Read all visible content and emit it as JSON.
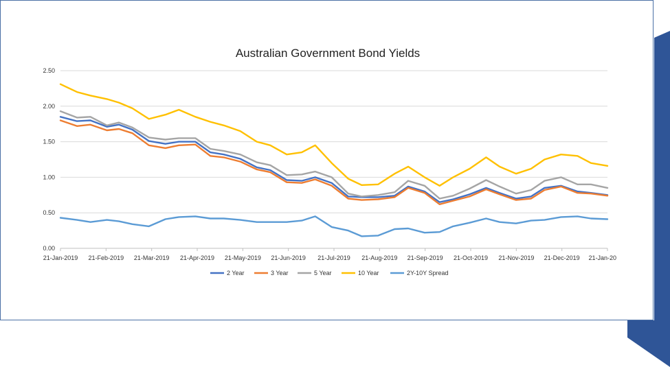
{
  "chart_data": {
    "type": "line",
    "title": "Australian Government Bond Yields",
    "xlabel": "",
    "ylabel": "",
    "ylim": [
      0,
      2.5
    ],
    "yticks": [
      "0.00",
      "0.50",
      "1.00",
      "1.50",
      "2.00",
      "2.50"
    ],
    "xticks": [
      "21-Jan-2019",
      "21-Feb-2019",
      "21-Mar-2019",
      "21-Apr-2019",
      "21-May-2019",
      "21-Jun-2019",
      "21-Jul-2019",
      "21-Aug-2019",
      "21-Sep-2019",
      "21-Oct-2019",
      "21-Nov-2019",
      "21-Dec-2019",
      "21-Jan-20"
    ],
    "grid": true,
    "legend_position": "bottom",
    "x": [
      "2019-01-21",
      "2019-02-01",
      "2019-02-10",
      "2019-02-21",
      "2019-03-01",
      "2019-03-10",
      "2019-03-21",
      "2019-04-01",
      "2019-04-10",
      "2019-04-21",
      "2019-05-01",
      "2019-05-10",
      "2019-05-21",
      "2019-06-01",
      "2019-06-10",
      "2019-06-21",
      "2019-07-01",
      "2019-07-10",
      "2019-07-21",
      "2019-08-01",
      "2019-08-10",
      "2019-08-21",
      "2019-09-01",
      "2019-09-10",
      "2019-09-21",
      "2019-10-01",
      "2019-10-10",
      "2019-10-21",
      "2019-11-01",
      "2019-11-10",
      "2019-11-21",
      "2019-12-01",
      "2019-12-10",
      "2019-12-21",
      "2020-01-01",
      "2020-01-10",
      "2020-01-21"
    ],
    "series": [
      {
        "name": "2 Year",
        "color": "#4472c4",
        "values": [
          1.85,
          1.79,
          1.8,
          1.71,
          1.74,
          1.67,
          1.51,
          1.47,
          1.5,
          1.5,
          1.35,
          1.32,
          1.26,
          1.14,
          1.1,
          0.96,
          0.95,
          1.0,
          0.92,
          0.73,
          0.72,
          0.72,
          0.74,
          0.87,
          0.8,
          0.65,
          0.69,
          0.76,
          0.85,
          0.78,
          0.7,
          0.73,
          0.85,
          0.88,
          0.8,
          0.78,
          0.75
        ]
      },
      {
        "name": "3 Year",
        "color": "#ed7d31",
        "values": [
          1.8,
          1.72,
          1.74,
          1.66,
          1.68,
          1.62,
          1.45,
          1.41,
          1.45,
          1.46,
          1.3,
          1.28,
          1.22,
          1.11,
          1.07,
          0.93,
          0.92,
          0.97,
          0.88,
          0.7,
          0.68,
          0.69,
          0.72,
          0.85,
          0.78,
          0.62,
          0.67,
          0.73,
          0.83,
          0.76,
          0.68,
          0.7,
          0.82,
          0.87,
          0.78,
          0.77,
          0.74
        ]
      },
      {
        "name": "5 Year",
        "color": "#a5a5a5",
        "values": [
          1.93,
          1.84,
          1.85,
          1.73,
          1.77,
          1.7,
          1.56,
          1.53,
          1.55,
          1.55,
          1.4,
          1.37,
          1.32,
          1.21,
          1.17,
          1.03,
          1.04,
          1.08,
          1.0,
          0.77,
          0.73,
          0.75,
          0.79,
          0.95,
          0.88,
          0.7,
          0.74,
          0.84,
          0.96,
          0.87,
          0.77,
          0.82,
          0.95,
          1.0,
          0.9,
          0.9,
          0.85
        ]
      },
      {
        "name": "10 Year",
        "color": "#ffc000",
        "values": [
          2.31,
          2.2,
          2.15,
          2.1,
          2.05,
          1.97,
          1.82,
          1.88,
          1.95,
          1.85,
          1.78,
          1.73,
          1.65,
          1.5,
          1.45,
          1.32,
          1.35,
          1.45,
          1.2,
          0.98,
          0.89,
          0.9,
          1.05,
          1.15,
          1.0,
          0.88,
          1.0,
          1.12,
          1.28,
          1.15,
          1.05,
          1.12,
          1.25,
          1.32,
          1.3,
          1.2,
          1.16
        ]
      },
      {
        "name": "2Y-10Y Spread",
        "color": "#5b9bd5",
        "values": [
          0.43,
          0.4,
          0.37,
          0.4,
          0.38,
          0.34,
          0.31,
          0.41,
          0.44,
          0.45,
          0.42,
          0.42,
          0.4,
          0.37,
          0.37,
          0.37,
          0.39,
          0.45,
          0.3,
          0.25,
          0.17,
          0.18,
          0.27,
          0.28,
          0.22,
          0.23,
          0.31,
          0.36,
          0.42,
          0.37,
          0.35,
          0.39,
          0.4,
          0.44,
          0.45,
          0.42,
          0.41
        ]
      }
    ]
  }
}
